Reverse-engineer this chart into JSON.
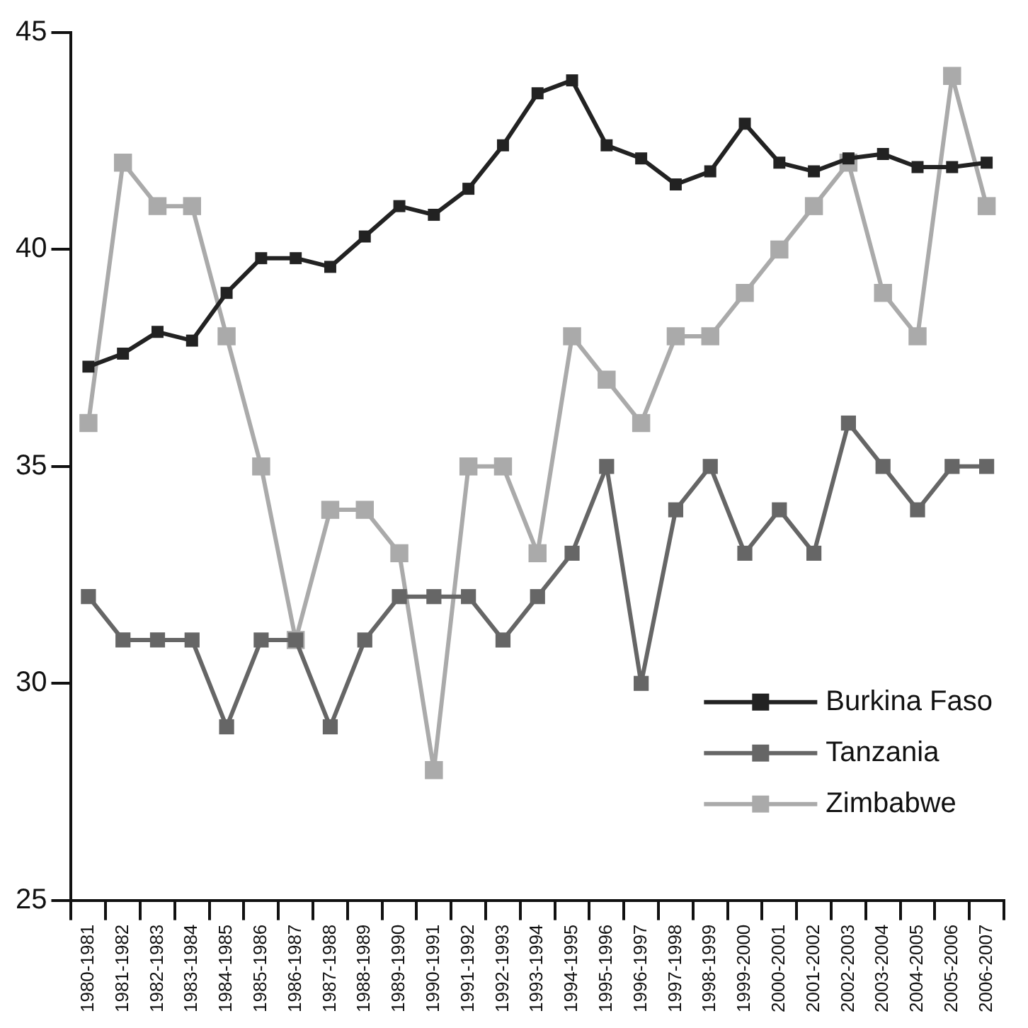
{
  "chart_data": {
    "type": "line",
    "categories": [
      "1980-1981",
      "1981-1982",
      "1982-1983",
      "1983-1984",
      "1984-1985",
      "1985-1986",
      "1986-1987",
      "1987-1988",
      "1988-1989",
      "1989-1990",
      "1990-1991",
      "1991-1992",
      "1992-1993",
      "1993-1994",
      "1994-1995",
      "1995-1996",
      "1996-1997",
      "1997-1998",
      "1998-1999",
      "1999-2000",
      "2000-2001",
      "2001-2002",
      "2002-2003",
      "2003-2004",
      "2004-2005",
      "2005-2006",
      "2006-2007"
    ],
    "series": [
      {
        "name": "Burkina Faso",
        "color": "#222222",
        "values": [
          37.3,
          37.6,
          38.1,
          37.9,
          39.0,
          39.8,
          39.8,
          39.6,
          40.3,
          41.0,
          40.8,
          41.4,
          42.4,
          43.6,
          43.9,
          42.4,
          42.1,
          41.5,
          41.8,
          42.9,
          42.0,
          41.8,
          42.1,
          42.2,
          41.9,
          41.9,
          42.0
        ]
      },
      {
        "name": "Tanzania",
        "color": "#666666",
        "values": [
          32,
          31,
          31,
          31,
          29,
          31,
          31,
          29,
          31,
          32,
          32,
          32,
          31,
          32,
          33,
          35,
          30,
          34,
          35,
          33,
          34,
          33,
          36,
          35,
          34,
          35,
          35
        ]
      },
      {
        "name": "Zimbabwe",
        "color": "#aaaaaa",
        "values": [
          36,
          42,
          41,
          41,
          38,
          35,
          31,
          34,
          34,
          33,
          28,
          35,
          35,
          33,
          38,
          37,
          36,
          38,
          38,
          39,
          40,
          41,
          42,
          39,
          38,
          44,
          41
        ]
      }
    ],
    "ylim": [
      25,
      45
    ],
    "yticks": [
      25,
      30,
      35,
      40,
      45
    ],
    "grid": false,
    "legend": "bottom right",
    "marker": "square",
    "line_style": "solid"
  }
}
